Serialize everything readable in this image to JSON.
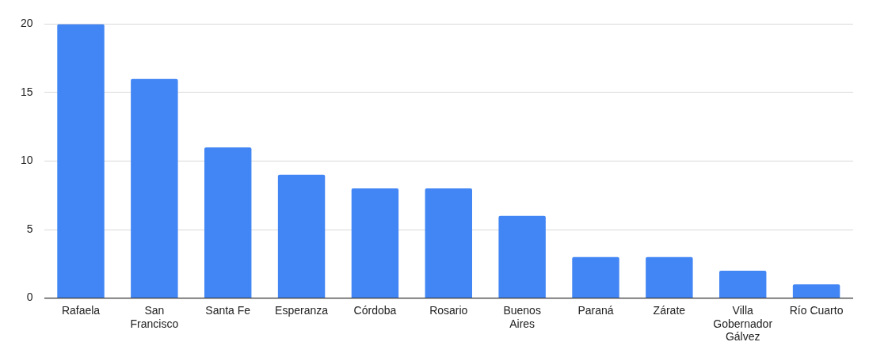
{
  "chart_data": {
    "type": "bar",
    "categories": [
      "Rafaela",
      "San Francisco",
      "Santa Fe",
      "Esperanza",
      "Córdoba",
      "Rosario",
      "Buenos Aires",
      "Paraná",
      "Zárate",
      "Villa Gobernador Gálvez",
      "Río Cuarto"
    ],
    "values": [
      20,
      16,
      11,
      9,
      8,
      8,
      6,
      3,
      3,
      2,
      1
    ],
    "color": "#4285f4",
    "ylim": [
      0,
      20
    ],
    "yticks": [
      0,
      5,
      10,
      15,
      20
    ],
    "grid": "y",
    "legend": false
  }
}
